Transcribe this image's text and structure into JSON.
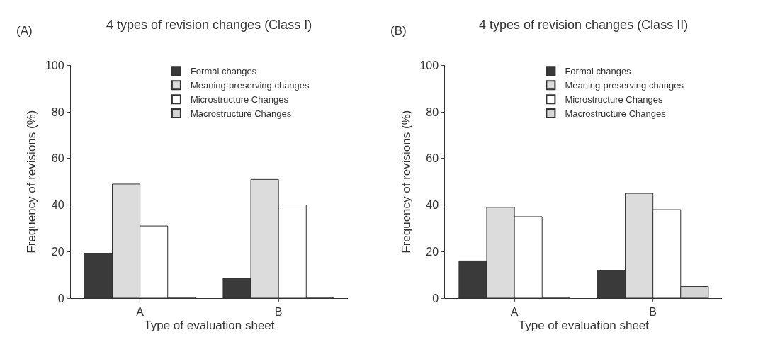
{
  "chart_data": [
    {
      "type": "bar",
      "title": "4 types of revision changes (Class I)",
      "xlabel": "Type of evaluation sheet",
      "ylabel": "Frequency of revisions (%)",
      "annotations": [
        "(A)"
      ],
      "categories": [
        "A",
        "B"
      ],
      "ylim": [
        0,
        100
      ],
      "yticks": [
        0,
        20,
        40,
        60,
        80,
        100
      ],
      "legend": "top right",
      "series": [
        {
          "name": "Formal changes",
          "color": "#3a3a3a",
          "values": [
            19,
            8.6
          ]
        },
        {
          "name": "Meaning-preserving changes",
          "color": "#dcdcdc",
          "values": [
            49,
            51
          ]
        },
        {
          "name": "Microstructure Changes",
          "color": "#ffffff",
          "values": [
            31,
            40
          ]
        },
        {
          "name": "Macrostructure Changes",
          "color": "#d4d4d4",
          "values": [
            0,
            0
          ]
        }
      ]
    },
    {
      "type": "bar",
      "title": "4 types of revision changes (Class II)",
      "xlabel": "Type of evaluation sheet",
      "ylabel": "Frequency of revisions (%)",
      "annotations": [
        "(B)"
      ],
      "categories": [
        "A",
        "B"
      ],
      "ylim": [
        0,
        100
      ],
      "yticks": [
        0,
        20,
        40,
        60,
        80,
        100
      ],
      "legend": "top right",
      "series": [
        {
          "name": "Formal changes",
          "color": "#3a3a3a",
          "values": [
            16,
            12
          ]
        },
        {
          "name": "Meaning-preserving changes",
          "color": "#dcdcdc",
          "values": [
            39,
            45
          ]
        },
        {
          "name": "Microstructure Changes",
          "color": "#ffffff",
          "values": [
            35,
            38
          ]
        },
        {
          "name": "Macrostructure Changes",
          "color": "#d4d4d4",
          "values": [
            0,
            5
          ]
        }
      ]
    }
  ]
}
